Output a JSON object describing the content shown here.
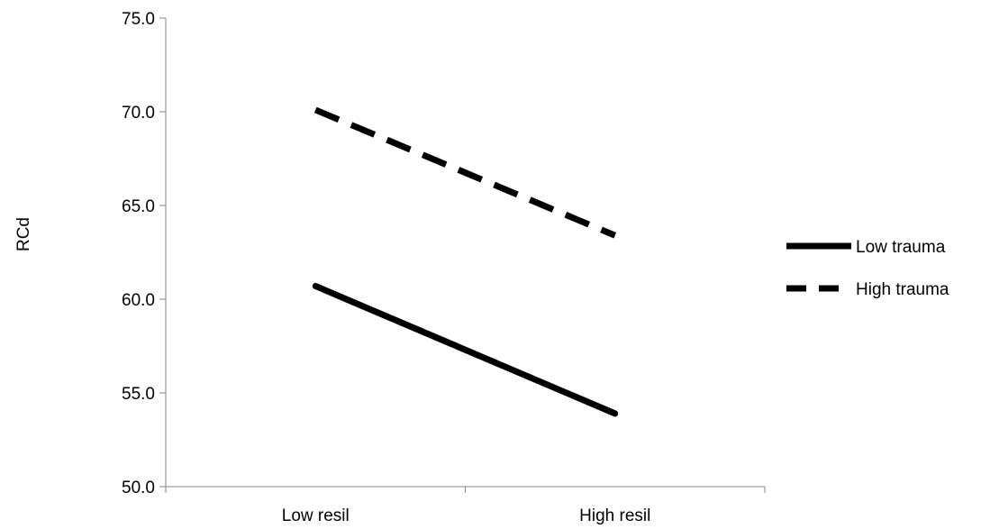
{
  "chart_data": {
    "type": "line",
    "title": "",
    "xlabel": "",
    "ylabel": "RCd",
    "categories": [
      "Low resil",
      "High resil"
    ],
    "ylim": [
      50.0,
      75.0
    ],
    "yticks": [
      "50.0",
      "55.0",
      "60.0",
      "65.0",
      "70.0",
      "75.0"
    ],
    "grid": false,
    "legend_position": "right",
    "series": [
      {
        "name": "Low trauma",
        "values": [
          60.7,
          53.9
        ],
        "style": "solid",
        "color": "#000000"
      },
      {
        "name": "High trauma",
        "values": [
          70.1,
          63.4
        ],
        "style": "dashed",
        "color": "#000000"
      }
    ]
  }
}
